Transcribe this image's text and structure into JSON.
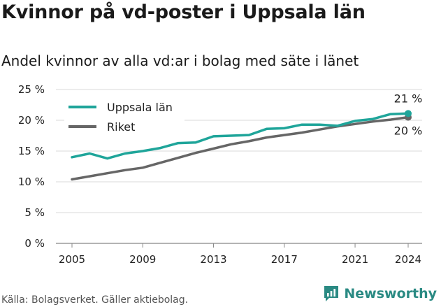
{
  "header": {
    "title": "Kvinnor på vd-poster i Uppsala län",
    "subtitle": "Andel kvinnor av alla vd:ar i bolag med säte i länet"
  },
  "footer": {
    "source": "Källa: Bolagsverket. Gäller aktiebolag.",
    "brand": "Newsworthy"
  },
  "colors": {
    "uppsala": "#1fa59a",
    "riket": "#666666",
    "grid": "#d9d9d9",
    "axis": "#888888"
  },
  "chart_data": {
    "type": "line",
    "title": "Kvinnor på vd-poster i Uppsala län",
    "subtitle": "Andel kvinnor av alla vd:ar i bolag med säte i länet",
    "xlabel": "",
    "ylabel": "",
    "x": [
      2005,
      2006,
      2007,
      2008,
      2009,
      2010,
      2011,
      2012,
      2013,
      2014,
      2015,
      2016,
      2017,
      2018,
      2019,
      2020,
      2021,
      2022,
      2023,
      2024
    ],
    "x_ticks": [
      2005,
      2009,
      2013,
      2017,
      2021,
      2024
    ],
    "x_tick_labels": [
      "2005",
      "2009",
      "2013",
      "2017",
      "2021",
      "2024"
    ],
    "ylim": [
      0,
      25
    ],
    "y_ticks": [
      0,
      5,
      10,
      15,
      20,
      25
    ],
    "y_tick_labels": [
      "0 %",
      "5 %",
      "10 %",
      "15 %",
      "20 %",
      "25 %"
    ],
    "grid": true,
    "legend_position": "top-left",
    "series": [
      {
        "name": "Uppsala län",
        "key": "uppsala",
        "values": [
          14.0,
          14.6,
          13.8,
          14.6,
          15.0,
          15.5,
          16.3,
          16.4,
          17.4,
          17.5,
          17.6,
          18.6,
          18.7,
          19.3,
          19.3,
          19.1,
          19.9,
          20.2,
          21.0,
          21.1
        ],
        "end_label": "21 %"
      },
      {
        "name": "Riket",
        "key": "riket",
        "values": [
          10.4,
          10.9,
          11.4,
          11.9,
          12.3,
          13.1,
          13.9,
          14.7,
          15.4,
          16.1,
          16.6,
          17.2,
          17.6,
          18.0,
          18.5,
          19.0,
          19.4,
          19.8,
          20.1,
          20.5
        ],
        "end_label": "20 %"
      }
    ]
  }
}
